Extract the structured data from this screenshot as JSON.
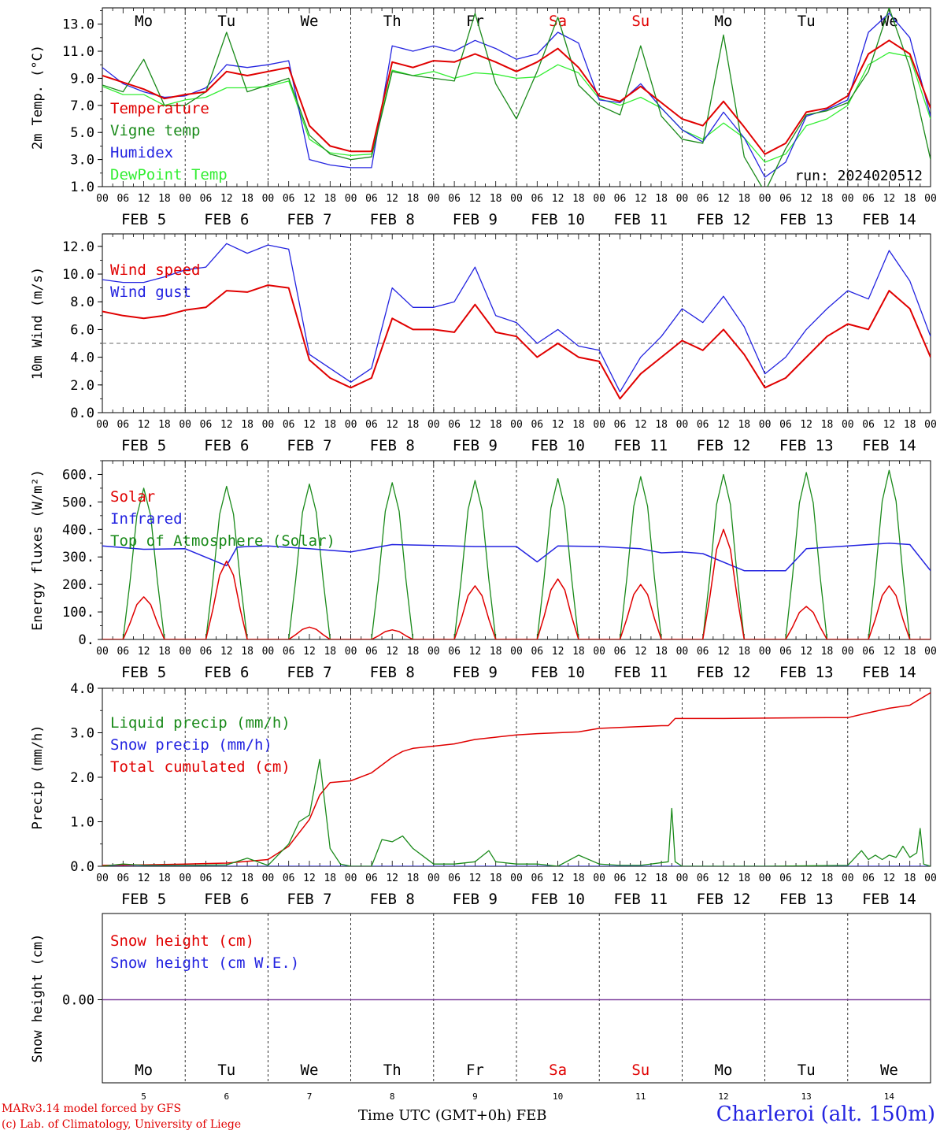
{
  "chart_data": [
    {
      "type": "line",
      "ylabel": "2m Temp. (°C)",
      "ylim": [
        1.0,
        14.2
      ],
      "yticks": [
        "1.0",
        "3.0",
        "5.0",
        "7.0",
        "9.0",
        "11.0",
        "13.0"
      ],
      "annotation": "run: 2024020512",
      "weekdays": [
        {
          "label": "Mo",
          "color": "#000000"
        },
        {
          "label": "Tu",
          "color": "#000000"
        },
        {
          "label": "We",
          "color": "#000000"
        },
        {
          "label": "Th",
          "color": "#000000"
        },
        {
          "label": "Fr",
          "color": "#000000"
        },
        {
          "label": "Sa",
          "color": "#e00000"
        },
        {
          "label": "Su",
          "color": "#e00000"
        },
        {
          "label": "Mo",
          "color": "#000000"
        },
        {
          "label": "Tu",
          "color": "#000000"
        },
        {
          "label": "We",
          "color": "#000000"
        }
      ],
      "hour_labels": [
        "00",
        "06",
        "12",
        "18"
      ],
      "final_hour_label": "00",
      "date_labels": [
        "FEB  5",
        "FEB  6",
        "FEB  7",
        "FEB  8",
        "FEB  9",
        "FEB 10",
        "FEB 11",
        "FEB 12",
        "FEB 13",
        "FEB 14"
      ],
      "legend": [
        {
          "text": "Temperature",
          "color": "#e00000"
        },
        {
          "text": "Vigne temp",
          "color": "#1a8a1a"
        },
        {
          "text": "Humidex",
          "color": "#2323e0"
        },
        {
          "text": "DewPoint Temp",
          "color": "#33ee33"
        }
      ],
      "x_hours": [
        0,
        6,
        12,
        18,
        24,
        30,
        36,
        42,
        48,
        54,
        60,
        66,
        72,
        78,
        84,
        90,
        96,
        102,
        108,
        114,
        120,
        126,
        132,
        138,
        144,
        150,
        156,
        162,
        168,
        174,
        180,
        186,
        192,
        198,
        204,
        210,
        216,
        222,
        228,
        234,
        240
      ],
      "series": [
        {
          "name": "Temperature",
          "color": "#e00000",
          "width": 2,
          "values": [
            9.2,
            8.7,
            8.2,
            7.5,
            7.8,
            8.0,
            9.5,
            9.2,
            9.5,
            9.8,
            5.5,
            4.0,
            3.6,
            3.6,
            10.2,
            9.8,
            10.3,
            10.2,
            10.8,
            10.2,
            9.5,
            10.2,
            11.2,
            9.8,
            7.7,
            7.3,
            8.4,
            7.2,
            6.0,
            5.5,
            7.3,
            5.4,
            3.4,
            4.2,
            6.5,
            6.8,
            7.7,
            10.8,
            11.8,
            10.8,
            6.8
          ]
        },
        {
          "name": "Vigne temp",
          "color": "#1a8a1a",
          "width": 1.3,
          "values": [
            8.5,
            8.0,
            10.4,
            7.0,
            7.0,
            8.0,
            12.4,
            8.0,
            8.5,
            9.0,
            4.8,
            3.4,
            3.0,
            3.2,
            9.5,
            9.2,
            9.0,
            8.8,
            13.8,
            8.6,
            6.0,
            9.5,
            13.5,
            8.5,
            7.0,
            6.3,
            11.4,
            6.2,
            4.5,
            4.2,
            12.2,
            3.2,
            0.6,
            3.8,
            6.3,
            6.6,
            7.2,
            9.5,
            14.2,
            9.8,
            3.0
          ]
        },
        {
          "name": "Humidex",
          "color": "#2323e0",
          "width": 1.3,
          "values": [
            9.8,
            8.6,
            8.0,
            7.6,
            7.7,
            8.3,
            10.0,
            9.8,
            10.0,
            10.3,
            3.0,
            2.6,
            2.4,
            2.4,
            11.4,
            11.0,
            11.4,
            11.0,
            11.8,
            11.2,
            10.4,
            10.8,
            12.4,
            11.6,
            7.4,
            7.2,
            8.6,
            6.8,
            5.2,
            4.3,
            6.5,
            4.6,
            1.7,
            2.8,
            6.2,
            6.7,
            7.4,
            12.4,
            13.8,
            12.0,
            6.2
          ]
        },
        {
          "name": "DewPoint Temp",
          "color": "#33ee33",
          "width": 1.3,
          "values": [
            8.4,
            7.8,
            7.8,
            7.0,
            7.4,
            7.6,
            8.3,
            8.3,
            8.4,
            8.8,
            4.5,
            3.5,
            3.3,
            3.4,
            9.6,
            9.2,
            9.5,
            9.0,
            9.4,
            9.3,
            9.0,
            9.1,
            10.0,
            9.4,
            7.5,
            7.0,
            7.6,
            6.8,
            5.2,
            4.5,
            5.7,
            4.6,
            2.8,
            3.4,
            5.5,
            6.0,
            7.0,
            10.0,
            10.9,
            10.6,
            6.0
          ]
        }
      ]
    },
    {
      "type": "line",
      "ylabel": "10m Wind (m/s)",
      "ylim": [
        0.0,
        12.9
      ],
      "yticks": [
        "0.0",
        "2.0",
        "4.0",
        "6.0",
        "8.0",
        "10.0",
        "12.0"
      ],
      "reference_line": 5.0,
      "hour_labels": [
        "00",
        "06",
        "12",
        "18"
      ],
      "final_hour_label": "00",
      "date_labels": [
        "FEB  5",
        "FEB  6",
        "FEB  7",
        "FEB  8",
        "FEB  9",
        "FEB 10",
        "FEB 11",
        "FEB 12",
        "FEB 13",
        "FEB 14"
      ],
      "legend": [
        {
          "text": "Wind speed",
          "color": "#e00000"
        },
        {
          "text": "Wind gust",
          "color": "#2323e0"
        }
      ],
      "x_hours": [
        0,
        6,
        12,
        18,
        24,
        30,
        36,
        42,
        48,
        54,
        60,
        66,
        72,
        78,
        84,
        90,
        96,
        102,
        108,
        114,
        120,
        126,
        132,
        138,
        144,
        150,
        156,
        162,
        168,
        174,
        180,
        186,
        192,
        198,
        204,
        210,
        216,
        222,
        228,
        234,
        240
      ],
      "series": [
        {
          "name": "Wind speed",
          "color": "#e00000",
          "width": 2,
          "values": [
            7.3,
            7.0,
            6.8,
            7.0,
            7.4,
            7.6,
            8.8,
            8.7,
            9.2,
            9.0,
            3.8,
            2.5,
            1.8,
            2.5,
            6.8,
            6.0,
            6.0,
            5.8,
            7.8,
            5.8,
            5.5,
            4.0,
            5.0,
            4.0,
            3.7,
            1.0,
            2.8,
            4.0,
            5.2,
            4.5,
            6.0,
            4.2,
            1.8,
            2.5,
            4.0,
            5.5,
            6.4,
            6.0,
            8.8,
            7.5,
            4.0
          ]
        },
        {
          "name": "Wind gust",
          "color": "#2323e0",
          "width": 1.3,
          "values": [
            9.6,
            9.4,
            9.4,
            9.8,
            10.3,
            10.5,
            12.2,
            11.5,
            12.1,
            11.8,
            4.2,
            3.2,
            2.2,
            3.2,
            9.0,
            7.6,
            7.6,
            8.0,
            10.5,
            7.0,
            6.5,
            5.0,
            6.0,
            4.8,
            4.5,
            1.5,
            4.0,
            5.5,
            7.5,
            6.5,
            8.4,
            6.2,
            2.8,
            4.0,
            6.0,
            7.5,
            8.8,
            8.2,
            11.7,
            9.5,
            5.5
          ]
        }
      ]
    },
    {
      "type": "line",
      "ylabel": "Energy fluxes (W/m²)",
      "ylim": [
        0,
        650
      ],
      "yticks": [
        "0.",
        "100.",
        "200.",
        "300.",
        "400.",
        "500.",
        "600."
      ],
      "hour_labels": [
        "00",
        "06",
        "12",
        "18"
      ],
      "final_hour_label": "00",
      "date_labels": [
        "FEB  5",
        "FEB  6",
        "FEB  7",
        "FEB  8",
        "FEB  9",
        "FEB 10",
        "FEB 11",
        "FEB 12",
        "FEB 13",
        "FEB 14"
      ],
      "legend": [
        {
          "text": "Solar",
          "color": "#e00000"
        },
        {
          "text": "Infrared",
          "color": "#2323e0"
        },
        {
          "text": "Top of Atmosphere (Solar)",
          "color": "#1a8a1a"
        }
      ],
      "daily_peak_hour": 12,
      "daylight_hours": [
        6,
        18
      ],
      "series": [
        {
          "name": "Solar",
          "color": "#e00000",
          "width": 1.5,
          "daily_peaks": [
            155,
            285,
            45,
            35,
            195,
            220,
            200,
            400,
            120,
            195
          ]
        },
        {
          "name": "Infrared",
          "color": "#2323e0",
          "width": 1.5,
          "x_hours": [
            0,
            12,
            24,
            36,
            39,
            42,
            48,
            60,
            72,
            84,
            96,
            108,
            120,
            126,
            132,
            144,
            156,
            162,
            168,
            174,
            186,
            198,
            204,
            216,
            228,
            234,
            240
          ],
          "values": [
            340,
            328,
            330,
            268,
            335,
            338,
            340,
            330,
            318,
            345,
            342,
            338,
            338,
            282,
            340,
            338,
            330,
            315,
            318,
            312,
            250,
            250,
            330,
            340,
            350,
            345,
            250
          ]
        },
        {
          "name": "Top of Atmosphere (Solar)",
          "color": "#1a8a1a",
          "width": 1.3,
          "daily_peaks": [
            550,
            557,
            565,
            570,
            578,
            585,
            592,
            600,
            607,
            615
          ]
        }
      ]
    },
    {
      "type": "line",
      "ylabel": "Precip (mm/h)",
      "ylim": [
        0.0,
        4.0
      ],
      "yticks": [
        "0.0",
        "1.0",
        "2.0",
        "3.0",
        "4.0"
      ],
      "hour_labels": [
        "00",
        "06",
        "12",
        "18"
      ],
      "final_hour_label": "00",
      "date_labels": [
        "FEB  5",
        "FEB  6",
        "FEB  7",
        "FEB  8",
        "FEB  9",
        "FEB 10",
        "FEB 11",
        "FEB 12",
        "FEB 13",
        "FEB 14"
      ],
      "legend": [
        {
          "text": "Liquid precip (mm/h)",
          "color": "#1a8a1a"
        },
        {
          "text": "Snow precip (mm/h)",
          "color": "#2323e0"
        },
        {
          "text": "Total cumulated (cm)",
          "color": "#e00000"
        }
      ],
      "series": [
        {
          "name": "Liquid precip (mm/h)",
          "color": "#1a8a1a",
          "width": 1.3,
          "x_hours": [
            0,
            6,
            12,
            24,
            36,
            42,
            48,
            54,
            57,
            60,
            63,
            66,
            69,
            72,
            78,
            81,
            84,
            87,
            90,
            96,
            102,
            108,
            112,
            114,
            120,
            126,
            132,
            138,
            144,
            150,
            156,
            164,
            165,
            166,
            168,
            192,
            216,
            220,
            222,
            224,
            226,
            228,
            230,
            232,
            234,
            236,
            237,
            238,
            240
          ],
          "values": [
            0.0,
            0.05,
            0.02,
            0.02,
            0.03,
            0.18,
            0.02,
            0.5,
            1.0,
            1.15,
            2.4,
            0.4,
            0.05,
            0.0,
            0.0,
            0.6,
            0.55,
            0.68,
            0.4,
            0.05,
            0.05,
            0.1,
            0.35,
            0.1,
            0.05,
            0.05,
            0.0,
            0.25,
            0.05,
            0.02,
            0.02,
            0.1,
            1.3,
            0.1,
            0.0,
            0.0,
            0.02,
            0.35,
            0.15,
            0.25,
            0.15,
            0.25,
            0.2,
            0.45,
            0.2,
            0.3,
            0.85,
            0.05,
            0.0
          ]
        },
        {
          "name": "Snow precip (mm/h)",
          "color": "#2323e0",
          "width": 1.3,
          "x_hours": [
            0,
            240
          ],
          "values": [
            0.0,
            0.0
          ]
        },
        {
          "name": "Total cumulated (cm)",
          "color": "#e00000",
          "width": 1.5,
          "x_hours": [
            0,
            12,
            24,
            36,
            48,
            54,
            57,
            60,
            63,
            66,
            69,
            72,
            78,
            84,
            87,
            90,
            96,
            102,
            108,
            114,
            120,
            126,
            132,
            138,
            144,
            150,
            156,
            162,
            164,
            166,
            168,
            180,
            192,
            210,
            216,
            222,
            228,
            234,
            240
          ],
          "values": [
            0.02,
            0.03,
            0.05,
            0.07,
            0.15,
            0.45,
            0.75,
            1.05,
            1.6,
            1.88,
            1.9,
            1.92,
            2.1,
            2.45,
            2.58,
            2.65,
            2.7,
            2.75,
            2.85,
            2.9,
            2.95,
            2.98,
            3.0,
            3.02,
            3.1,
            3.12,
            3.14,
            3.16,
            3.16,
            3.32,
            3.32,
            3.32,
            3.33,
            3.34,
            3.34,
            3.45,
            3.55,
            3.62,
            3.9
          ]
        }
      ]
    },
    {
      "type": "line",
      "ylabel": "Snow height (cm)",
      "yticks": [
        "0.00"
      ],
      "legend": [
        {
          "text": "Snow height (cm)",
          "color": "#e00000"
        },
        {
          "text": "Snow height (cm W.E.)",
          "color": "#2323e0"
        }
      ],
      "weekdays": [
        {
          "label": "Mo",
          "color": "#000000"
        },
        {
          "label": "Tu",
          "color": "#000000"
        },
        {
          "label": "We",
          "color": "#000000"
        },
        {
          "label": "Th",
          "color": "#000000"
        },
        {
          "label": "Fr",
          "color": "#000000"
        },
        {
          "label": "Sa",
          "color": "#e00000"
        },
        {
          "label": "Su",
          "color": "#e00000"
        },
        {
          "label": "Mo",
          "color": "#000000"
        },
        {
          "label": "Tu",
          "color": "#000000"
        },
        {
          "label": "We",
          "color": "#000000"
        }
      ],
      "day_numbers": [
        "5",
        "6",
        "7",
        "8",
        "9",
        "10",
        "11",
        "12",
        "13",
        "14"
      ],
      "series": [
        {
          "name": "Snow height (cm)",
          "color": "#e00000",
          "width": 1.2,
          "x_hours": [
            0,
            240
          ],
          "values": [
            0.0,
            0.0
          ]
        },
        {
          "name": "Snow height (cm W.E.)",
          "color": "#2323e0",
          "width": 1.2,
          "x_hours": [
            0,
            240
          ],
          "values": [
            0.0,
            0.0
          ]
        }
      ]
    }
  ],
  "footer": {
    "model_line": "MARv3.14 model forced by GFS",
    "credit_line": "(c) Lab. of Climatology, University of Liege",
    "xlabel": "Time UTC (GMT+0h) FEB",
    "station": "Charleroi (alt. 150m)"
  }
}
